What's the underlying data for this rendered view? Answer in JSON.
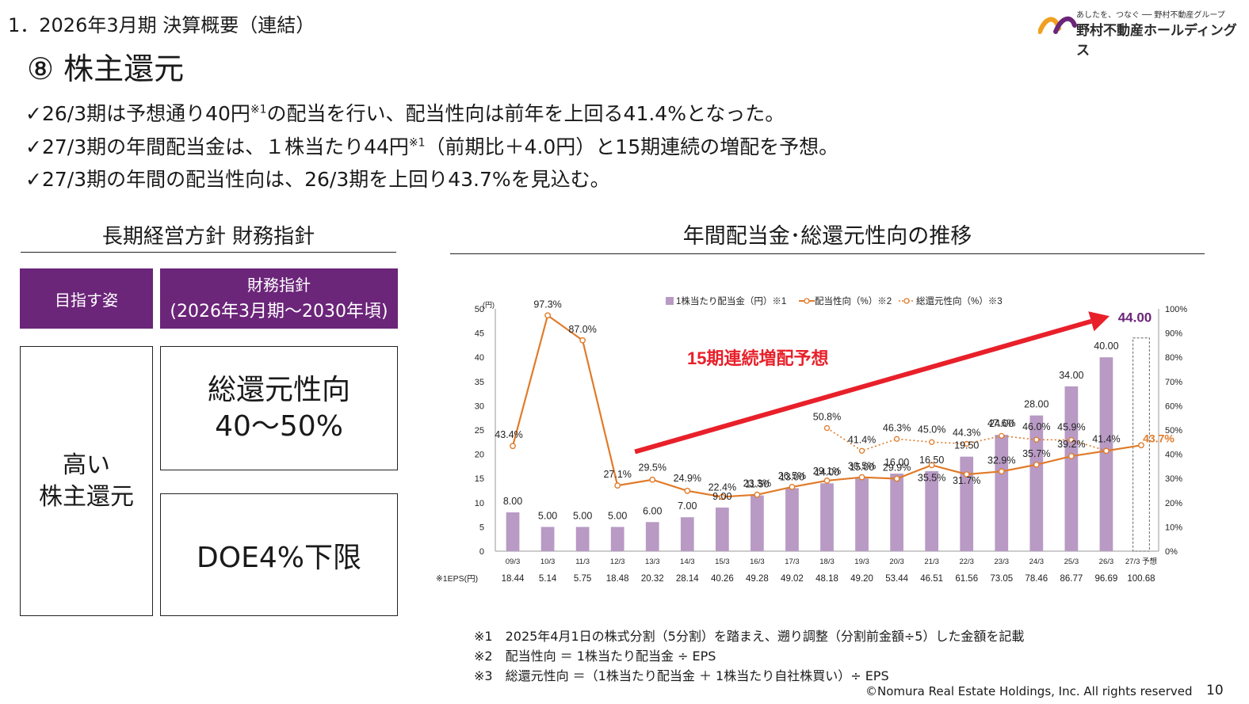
{
  "header": {
    "section_title": "1．2026年3月期 決算概要（連結）",
    "page_heading": "⑧ 株主還元",
    "logo_tagline": "あしたを、つなぐ ── 野村不動産グループ",
    "logo_name": "野村不動産ホールディングス"
  },
  "bullets": [
    {
      "mark": "✓",
      "text": "26/3期は予想通り40円",
      "sup": "※1",
      "rest": "の配当を行い、配当性向は前年を上回る41.4%となった。"
    },
    {
      "mark": "✓",
      "text": "27/3期の年間配当金は、１株当たり44円",
      "sup": "※1",
      "rest": "（前期比＋4.0円）と15期連続の増配を予想。"
    },
    {
      "mark": "✓",
      "text": "27/3期の年間の配当性向は、26/3期を上回り43.7%を見込む。",
      "sup": "",
      "rest": ""
    }
  ],
  "left_panel": {
    "heading": "長期経営方針 財務指針",
    "header_cells": {
      "goal": "目指す姿",
      "policy_line1": "財務指針",
      "policy_line2": "(2026年3月期～2030年頃)"
    },
    "goal_line1": "高い",
    "goal_line2": "株主還元",
    "policy1_line1": "総還元性向",
    "policy1_line2": "40～50%",
    "policy2": "DOE4%下限"
  },
  "chart_heading": "年間配当金･総還元性向の推移",
  "chart_data": {
    "type": "bar+line",
    "categories": [
      "09/3",
      "10/3",
      "11/3",
      "12/3",
      "13/3",
      "14/3",
      "15/3",
      "16/3",
      "17/3",
      "18/3",
      "19/3",
      "20/3",
      "21/3",
      "22/3",
      "23/3",
      "24/3",
      "25/3",
      "26/3",
      "27/3 予想"
    ],
    "left_axis": {
      "label": "(円)",
      "ticks": [
        0,
        5,
        10,
        15,
        20,
        25,
        30,
        35,
        40,
        45,
        50
      ],
      "max_label": "50",
      "ylim": [
        0,
        50
      ]
    },
    "right_axis": {
      "ticks": [
        "0%",
        "10%",
        "20%",
        "30%",
        "40%",
        "50%",
        "60%",
        "70%",
        "80%",
        "90%",
        "100%"
      ],
      "ylim": [
        0,
        100
      ]
    },
    "legend": {
      "dividend": "1株当たり配当金（円）※1",
      "payout": "配当性向（%）※2",
      "total_return": "総還元性向（%）※3"
    },
    "series": [
      {
        "name": "1株当たり配当金（円）※1",
        "values": [
          8,
          5,
          5,
          5,
          6,
          7,
          9,
          11.5,
          13,
          14,
          15,
          16,
          16.5,
          19.5,
          24,
          28,
          34,
          40,
          44
        ],
        "labels": [
          "8.00",
          "5.00",
          "5.00",
          "5.00",
          "6.00",
          "7.00",
          "9.00",
          "11.50",
          "13.00",
          "14.00",
          "15.00",
          "16.00",
          "16.50",
          "19.50",
          "24.00",
          "28.00",
          "34.00",
          "40.00",
          "44.00"
        ]
      },
      {
        "name": "配当性向（%）※2",
        "values": [
          43.4,
          97.3,
          87.0,
          27.1,
          29.5,
          24.9,
          22.4,
          23.3,
          26.5,
          29.1,
          30.5,
          29.9,
          35.5,
          31.7,
          32.9,
          35.7,
          39.2,
          41.4,
          43.7
        ],
        "labels": [
          "43.4%",
          "97.3%",
          "87.0%",
          "27.1%",
          "29.5%",
          "24.9%",
          "22.4%",
          "23.3%",
          "26.5%",
          "29.1%",
          "30.5%",
          "29.9%",
          "35.5%",
          "31.7%",
          "32.9%",
          "35.7%",
          "39.2%",
          "41.4%",
          "43.7%"
        ]
      },
      {
        "name": "総還元性向（%）※3",
        "values": [
          null,
          null,
          null,
          null,
          null,
          null,
          null,
          null,
          null,
          50.8,
          41.4,
          46.3,
          45.0,
          44.3,
          47.6,
          46.0,
          45.9,
          41.4,
          null
        ],
        "labels": [
          "",
          "",
          "",
          "",
          "",
          "",
          "",
          "",
          "",
          "50.8%",
          "41.4%",
          "46.3%",
          "45.0%",
          "44.3%",
          "47.6%",
          "46.0%",
          "45.9%",
          "",
          ""
        ]
      }
    ],
    "eps_label": "※1EPS(円)",
    "eps": [
      "18.44",
      "5.14",
      "5.75",
      "18.48",
      "20.32",
      "28.14",
      "40.26",
      "49.28",
      "49.02",
      "48.18",
      "49.20",
      "53.44",
      "46.51",
      "61.56",
      "73.05",
      "78.46",
      "86.77",
      "96.69",
      "100.68"
    ],
    "annotation": "15期連続増配予想",
    "colors": {
      "bar": "#b89ac4",
      "payout": "#e07b2a",
      "total_return": "#e07b2a",
      "arrow": "#e8202a",
      "highlight": "#6b2579"
    }
  },
  "footnotes": [
    "※1　2025年4月1日の株式分割（5分割）を踏まえ、遡り調整（分割前金額÷5）した金額を記載",
    "※2　配当性向 ＝ 1株当たり配当金 ÷ EPS",
    "※3　総還元性向 ＝（1株当たり配当金 ＋ 1株当たり自社株買い）÷ EPS"
  ],
  "footer": {
    "copyright": "©Nomura Real Estate Holdings, Inc. All rights reserved",
    "page_number": "10"
  }
}
